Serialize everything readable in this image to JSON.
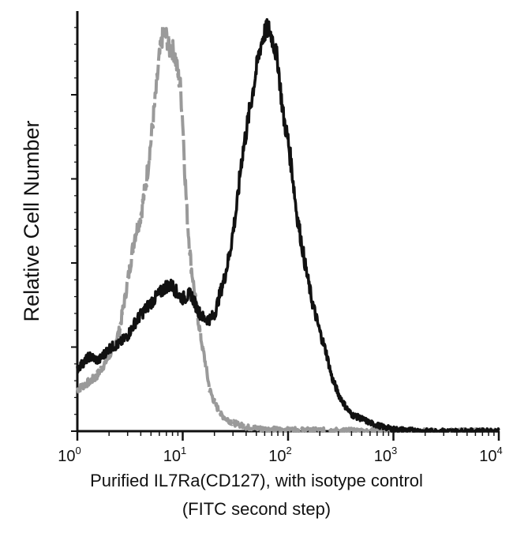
{
  "chart_data": {
    "type": "line",
    "title": "",
    "xlabel_line1": "Purified IL7Ra(CD127), with isotype control",
    "xlabel_line2": "(FITC second step)",
    "ylabel": "Relative Cell Number",
    "x_scale": "log",
    "xlim": [
      1,
      10000
    ],
    "ylim": [
      0,
      100
    ],
    "grid": false,
    "x_ticks": [
      {
        "base": "10",
        "exp": "0"
      },
      {
        "base": "10",
        "exp": "1"
      },
      {
        "base": "10",
        "exp": "2"
      },
      {
        "base": "10",
        "exp": "3"
      },
      {
        "base": "10",
        "exp": "4"
      }
    ],
    "series": [
      {
        "color": "#9a9a9a",
        "style": "dashed",
        "x": [
          1,
          1.5,
          2,
          2.5,
          3,
          3.5,
          4,
          4.5,
          5,
          5.5,
          6,
          6.5,
          7,
          7.5,
          8,
          8.5,
          9,
          9.5,
          10,
          10.5,
          11,
          12,
          13,
          14,
          15,
          16.5,
          18,
          20,
          23,
          26,
          30,
          35,
          40,
          50,
          60,
          80,
          100,
          200,
          500,
          1000,
          10000
        ],
        "y": [
          10,
          13,
          18,
          24,
          36,
          47,
          52,
          60,
          70,
          80,
          90,
          96,
          95,
          92,
          92,
          90,
          86,
          83,
          75,
          62,
          52,
          40,
          33,
          27,
          22,
          16,
          10,
          7,
          4,
          3,
          2,
          1.5,
          1,
          0.7,
          0.5,
          0.4,
          0.3,
          0.2,
          0.1,
          0,
          0
        ]
      },
      {
        "color": "#111111",
        "style": "solid",
        "x": [
          1,
          1.3,
          1.6,
          2,
          2.5,
          3,
          3.5,
          4,
          5,
          6,
          7,
          8,
          9,
          10,
          12,
          14,
          16,
          18,
          20,
          22,
          25,
          28,
          30,
          33,
          36,
          40,
          45,
          50,
          55,
          60,
          65,
          70,
          75,
          80,
          85,
          90,
          100,
          110,
          120,
          135,
          150,
          170,
          200,
          230,
          260,
          300,
          350,
          400,
          500,
          600,
          800,
          1000,
          2000,
          5000,
          10000
        ],
        "y": [
          15,
          18,
          17,
          20,
          21,
          23,
          26,
          28,
          31,
          33,
          35,
          35,
          33,
          32,
          33,
          29,
          27,
          27,
          28,
          32,
          37,
          43,
          48,
          55,
          65,
          72,
          80,
          87,
          93,
          96,
          97,
          95,
          92,
          89,
          82,
          76,
          70,
          62,
          53,
          45,
          38,
          31,
          24,
          19,
          13,
          9,
          6,
          4,
          3,
          2,
          1,
          0.5,
          0,
          0,
          0
        ]
      }
    ]
  }
}
